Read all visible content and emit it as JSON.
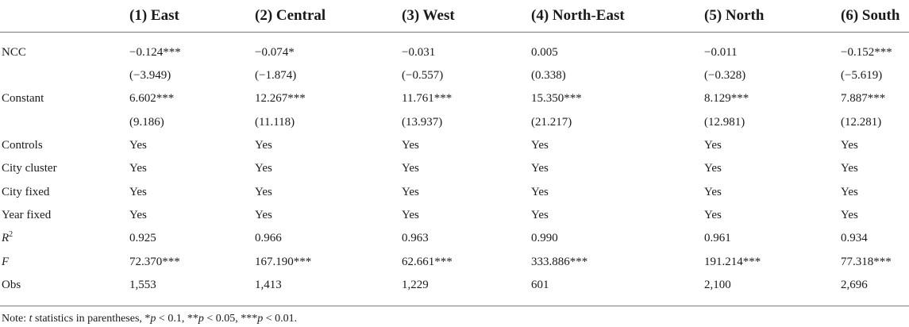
{
  "table": {
    "headers": [
      "",
      "(1) East",
      "(2) Central",
      "(3) West",
      "(4) North-East",
      "(5) North",
      "(6) South"
    ],
    "rows": [
      {
        "label": "NCC",
        "cells": [
          "−0.124***",
          "−0.074*",
          "−0.031",
          "0.005",
          "−0.011",
          "−0.152***"
        ]
      },
      {
        "label": "",
        "cells": [
          "(−3.949)",
          "(−1.874)",
          "(−0.557)",
          "(0.338)",
          "(−0.328)",
          "(−5.619)"
        ]
      },
      {
        "label": "Constant",
        "cells": [
          "6.602***",
          "12.267***",
          "11.761***",
          "15.350***",
          "8.129***",
          "7.887***"
        ]
      },
      {
        "label": "",
        "cells": [
          "(9.186)",
          "(11.118)",
          "(13.937)",
          "(21.217)",
          "(12.981)",
          "(12.281)"
        ]
      },
      {
        "label": "Controls",
        "cells": [
          "Yes",
          "Yes",
          "Yes",
          "Yes",
          "Yes",
          "Yes"
        ]
      },
      {
        "label": "City cluster",
        "cells": [
          "Yes",
          "Yes",
          "Yes",
          "Yes",
          "Yes",
          "Yes"
        ]
      },
      {
        "label": "City fixed",
        "cells": [
          "Yes",
          "Yes",
          "Yes",
          "Yes",
          "Yes",
          "Yes"
        ]
      },
      {
        "label": "Year fixed",
        "cells": [
          "Yes",
          "Yes",
          "Yes",
          "Yes",
          "Yes",
          "Yes"
        ]
      },
      {
        "label": "R",
        "label_sup": "2",
        "label_italic": true,
        "cells": [
          "0.925",
          "0.966",
          "0.963",
          "0.990",
          "0.961",
          "0.934"
        ]
      },
      {
        "label": "F",
        "label_italic": true,
        "cells": [
          "72.370***",
          "167.190***",
          "62.661***",
          "333.886***",
          "191.214***",
          "77.318***"
        ]
      },
      {
        "label": "Obs",
        "cells": [
          "1,553",
          "1,413",
          "1,229",
          "601",
          "2,100",
          "2,696"
        ]
      }
    ]
  },
  "note": {
    "prefix": "Note: ",
    "t": "t",
    "text1": " statistics in parentheses, *",
    "p1": "p",
    "text2": " < 0.1, **",
    "p2": "p",
    "text3": " < 0.05, ***",
    "p3": "p",
    "text4": " < 0.01."
  }
}
